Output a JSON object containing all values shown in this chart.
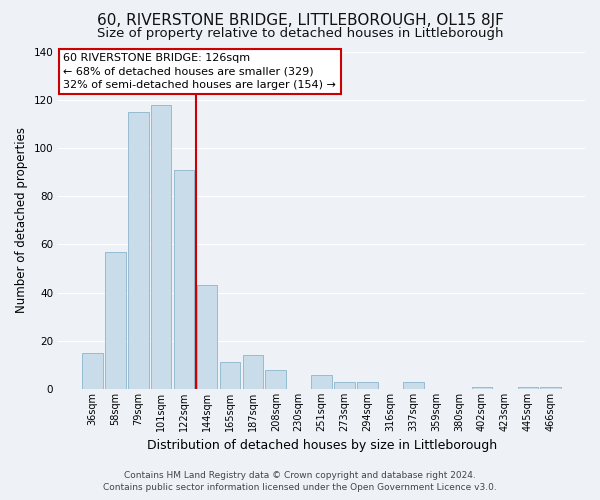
{
  "title": "60, RIVERSTONE BRIDGE, LITTLEBOROUGH, OL15 8JF",
  "subtitle": "Size of property relative to detached houses in Littleborough",
  "xlabel": "Distribution of detached houses by size in Littleborough",
  "ylabel": "Number of detached properties",
  "footer_line1": "Contains HM Land Registry data © Crown copyright and database right 2024.",
  "footer_line2": "Contains public sector information licensed under the Open Government Licence v3.0.",
  "bar_labels": [
    "36sqm",
    "58sqm",
    "79sqm",
    "101sqm",
    "122sqm",
    "144sqm",
    "165sqm",
    "187sqm",
    "208sqm",
    "230sqm",
    "251sqm",
    "273sqm",
    "294sqm",
    "316sqm",
    "337sqm",
    "359sqm",
    "380sqm",
    "402sqm",
    "423sqm",
    "445sqm",
    "466sqm"
  ],
  "bar_values": [
    15,
    57,
    115,
    118,
    91,
    43,
    11,
    14,
    8,
    0,
    6,
    3,
    3,
    0,
    3,
    0,
    0,
    1,
    0,
    1,
    1
  ],
  "bar_color": "#c9dcea",
  "bar_edge_color": "#8cb4cc",
  "annotation_text_line1": "60 RIVERSTONE BRIDGE: 126sqm",
  "annotation_text_line2": "← 68% of detached houses are smaller (329)",
  "annotation_text_line3": "32% of semi-detached houses are larger (154) →",
  "annotation_box_facecolor": "#ffffff",
  "annotation_box_edgecolor": "#cc0000",
  "vline_color": "#cc0000",
  "vline_x": 4.5,
  "ylim": [
    0,
    140
  ],
  "background_color": "#eef2f7",
  "grid_color": "#ffffff",
  "title_fontsize": 11,
  "subtitle_fontsize": 9.5,
  "xlabel_fontsize": 9,
  "ylabel_fontsize": 8.5,
  "tick_fontsize": 7,
  "annotation_fontsize": 8,
  "footer_fontsize": 6.5
}
